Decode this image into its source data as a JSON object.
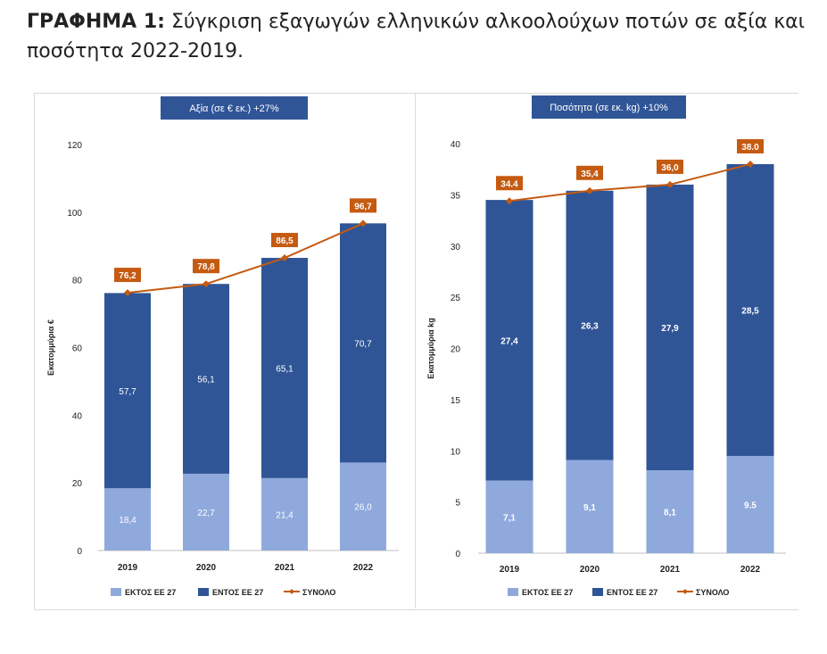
{
  "figure": {
    "title_lead": "ΓΡΑΦΗΜΑ 1:",
    "title_rest": " Σύγκριση εξαγωγών ελληνικών αλκοολούχων ποτών σε αξία και ποσότητα 2022-2019."
  },
  "colors": {
    "outside_eu": "#8fa9dc",
    "inside_eu": "#2f5597",
    "total_line": "#c55a11",
    "header_bg": "#2f5597"
  },
  "chart_data": [
    {
      "type": "bar",
      "stacked": true,
      "header": "Αξία (σε € εκ.) +27%",
      "ylabel": "Εκατομμύρια €",
      "ylim": [
        0,
        120
      ],
      "yticks": [
        0,
        20,
        40,
        60,
        80,
        100,
        120
      ],
      "categories": [
        "2019",
        "2020",
        "2021",
        "2022"
      ],
      "series": [
        {
          "name": "ΕΚΤΟΣ ΕΕ 27",
          "values": [
            18.4,
            22.7,
            21.4,
            26.0
          ],
          "labels": [
            "18,4",
            "22,7",
            "21,4",
            "26,0"
          ]
        },
        {
          "name": "ΕΝΤΟΣ ΕΕ 27",
          "values": [
            57.7,
            56.1,
            65.1,
            70.7
          ],
          "labels": [
            "57,7",
            "56,1",
            "65,1",
            "70,7"
          ]
        },
        {
          "name": "ΣΥΝΟΛΟ",
          "type": "line",
          "values": [
            76.2,
            78.8,
            86.5,
            96.7
          ],
          "labels": [
            "76,2",
            "78,8",
            "86,5",
            "96,7"
          ]
        }
      ],
      "legend_position": "bottom"
    },
    {
      "type": "bar",
      "stacked": true,
      "header": "Ποσότητα (σε εκ. kg) +10%",
      "ylabel": "Εκατομμύρια kg",
      "ylim": [
        0,
        40
      ],
      "yticks": [
        0,
        5,
        10,
        15,
        20,
        25,
        30,
        35,
        40
      ],
      "categories": [
        "2019",
        "2020",
        "2021",
        "2022"
      ],
      "series": [
        {
          "name": "ΕΚΤΟΣ ΕΕ 27",
          "values": [
            7.1,
            9.1,
            8.1,
            9.5
          ],
          "labels": [
            "7,1",
            "9,1",
            "8,1",
            "9.5"
          ]
        },
        {
          "name": "ΕΝΤΟΣ ΕΕ 27",
          "values": [
            27.4,
            26.3,
            27.9,
            28.5
          ],
          "labels": [
            "27,4",
            "26,3",
            "27,9",
            "28,5"
          ]
        },
        {
          "name": "ΣΥΝΟΛΟ",
          "type": "line",
          "values": [
            34.4,
            35.4,
            36.0,
            38.0
          ],
          "labels": [
            "34.4",
            "35,4",
            "36,0",
            "38.0"
          ]
        }
      ],
      "legend_position": "bottom"
    }
  ]
}
